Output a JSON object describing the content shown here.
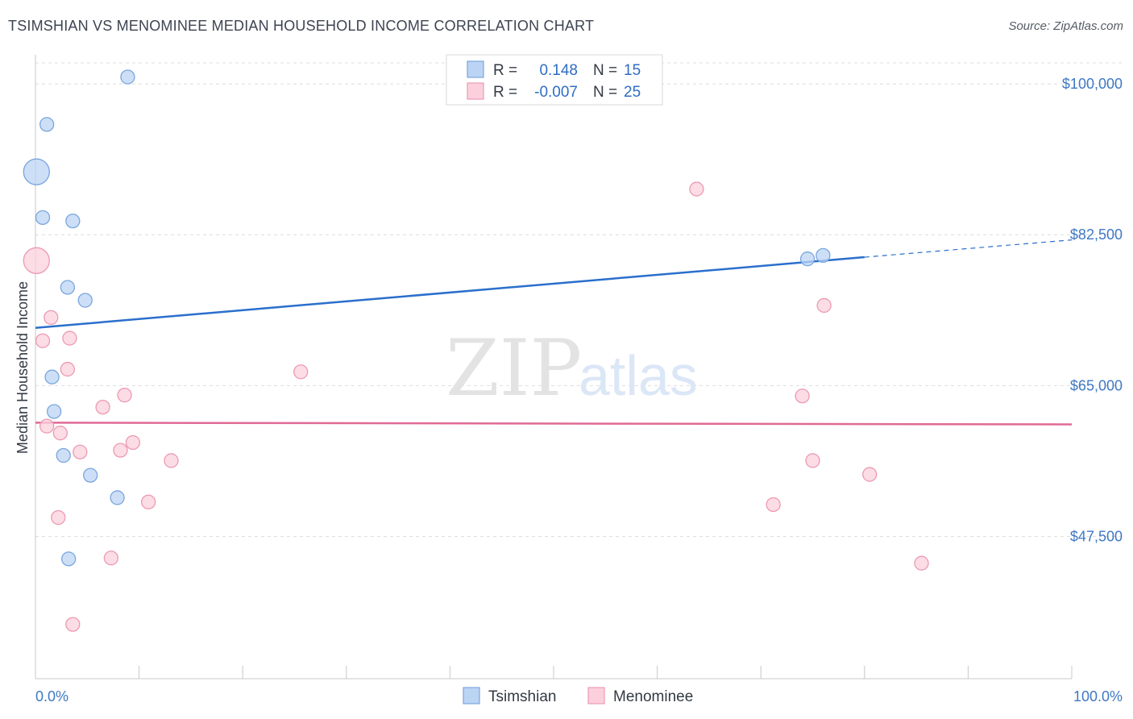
{
  "title": "TSIMSHIAN VS MENOMINEE MEDIAN HOUSEHOLD INCOME CORRELATION CHART",
  "source": "Source: ZipAtlas.com",
  "watermark": {
    "zip": "ZIP",
    "atlas": "atlas"
  },
  "colors": {
    "blue_fill": "#bcd4f4",
    "blue_stroke": "#7aa6dd",
    "blue_line": "#2a6fcc",
    "pink_fill": "#fbd0dc",
    "pink_stroke": "#ec9ab3",
    "pink_line": "#e06a95",
    "grid": "#dddddd",
    "tick_text": "#3f78c4"
  },
  "legend": {
    "rows": [
      {
        "r_label": "R =",
        "r_value": "0.148",
        "n_label": "N =",
        "n_value": "15"
      },
      {
        "r_label": "R =",
        "r_value": "-0.007",
        "n_label": "N =",
        "n_value": "25"
      }
    ]
  },
  "bottom_legend": [
    "Tsimshian",
    "Menominee"
  ],
  "chart_data": {
    "type": "scatter",
    "xlabel": "",
    "ylabel": "Median Household Income",
    "x_tick_labels": [
      "0.0%",
      "100.0%"
    ],
    "y_tick_labels": [
      "$47,500",
      "$65,000",
      "$82,500",
      "$100,000"
    ],
    "y_ticks": [
      47500,
      65000,
      82500,
      100000
    ],
    "xlim": [
      0,
      100
    ],
    "ylim": [
      31000,
      103000
    ],
    "grid": true,
    "series": [
      {
        "name": "Tsimshian",
        "color": "#bcd4f4",
        "points": [
          {
            "x": 8.9,
            "y": 100800
          },
          {
            "x": 1.1,
            "y": 95300
          },
          {
            "x": 0.1,
            "y": 89800,
            "big": true
          },
          {
            "x": 0.7,
            "y": 84500
          },
          {
            "x": 3.6,
            "y": 84100
          },
          {
            "x": 3.1,
            "y": 76400
          },
          {
            "x": 4.8,
            "y": 74900
          },
          {
            "x": 1.6,
            "y": 66000
          },
          {
            "x": 1.8,
            "y": 62000
          },
          {
            "x": 2.7,
            "y": 56900
          },
          {
            "x": 5.3,
            "y": 54600
          },
          {
            "x": 7.9,
            "y": 52000
          },
          {
            "x": 3.2,
            "y": 44900
          },
          {
            "x": 74.5,
            "y": 79700
          },
          {
            "x": 76.0,
            "y": 80100
          }
        ],
        "trend": {
          "x1": 0,
          "y1": 71700,
          "x2": 80,
          "y2": 79900,
          "x_dash_end": 100,
          "y_dash_end": 81900
        }
      },
      {
        "name": "Menominee",
        "color": "#fbd0dc",
        "points": [
          {
            "x": 0.1,
            "y": 79500,
            "big": true
          },
          {
            "x": 1.5,
            "y": 72900
          },
          {
            "x": 0.7,
            "y": 70200
          },
          {
            "x": 3.3,
            "y": 70500
          },
          {
            "x": 3.1,
            "y": 66900
          },
          {
            "x": 25.6,
            "y": 66600
          },
          {
            "x": 8.6,
            "y": 63900
          },
          {
            "x": 6.5,
            "y": 62500
          },
          {
            "x": 1.1,
            "y": 60300
          },
          {
            "x": 2.4,
            "y": 59500
          },
          {
            "x": 9.4,
            "y": 58400
          },
          {
            "x": 4.3,
            "y": 57300
          },
          {
            "x": 8.2,
            "y": 57500
          },
          {
            "x": 13.1,
            "y": 56300
          },
          {
            "x": 10.9,
            "y": 51500
          },
          {
            "x": 2.2,
            "y": 49700
          },
          {
            "x": 7.3,
            "y": 45000
          },
          {
            "x": 3.6,
            "y": 37300
          },
          {
            "x": 63.8,
            "y": 87800
          },
          {
            "x": 76.1,
            "y": 74300
          },
          {
            "x": 74.0,
            "y": 63800
          },
          {
            "x": 75.0,
            "y": 56300
          },
          {
            "x": 80.5,
            "y": 54700
          },
          {
            "x": 71.2,
            "y": 51200
          },
          {
            "x": 85.5,
            "y": 44400
          }
        ],
        "trend": {
          "x1": 0,
          "y1": 60700,
          "x2": 100,
          "y2": 60500
        }
      }
    ]
  }
}
